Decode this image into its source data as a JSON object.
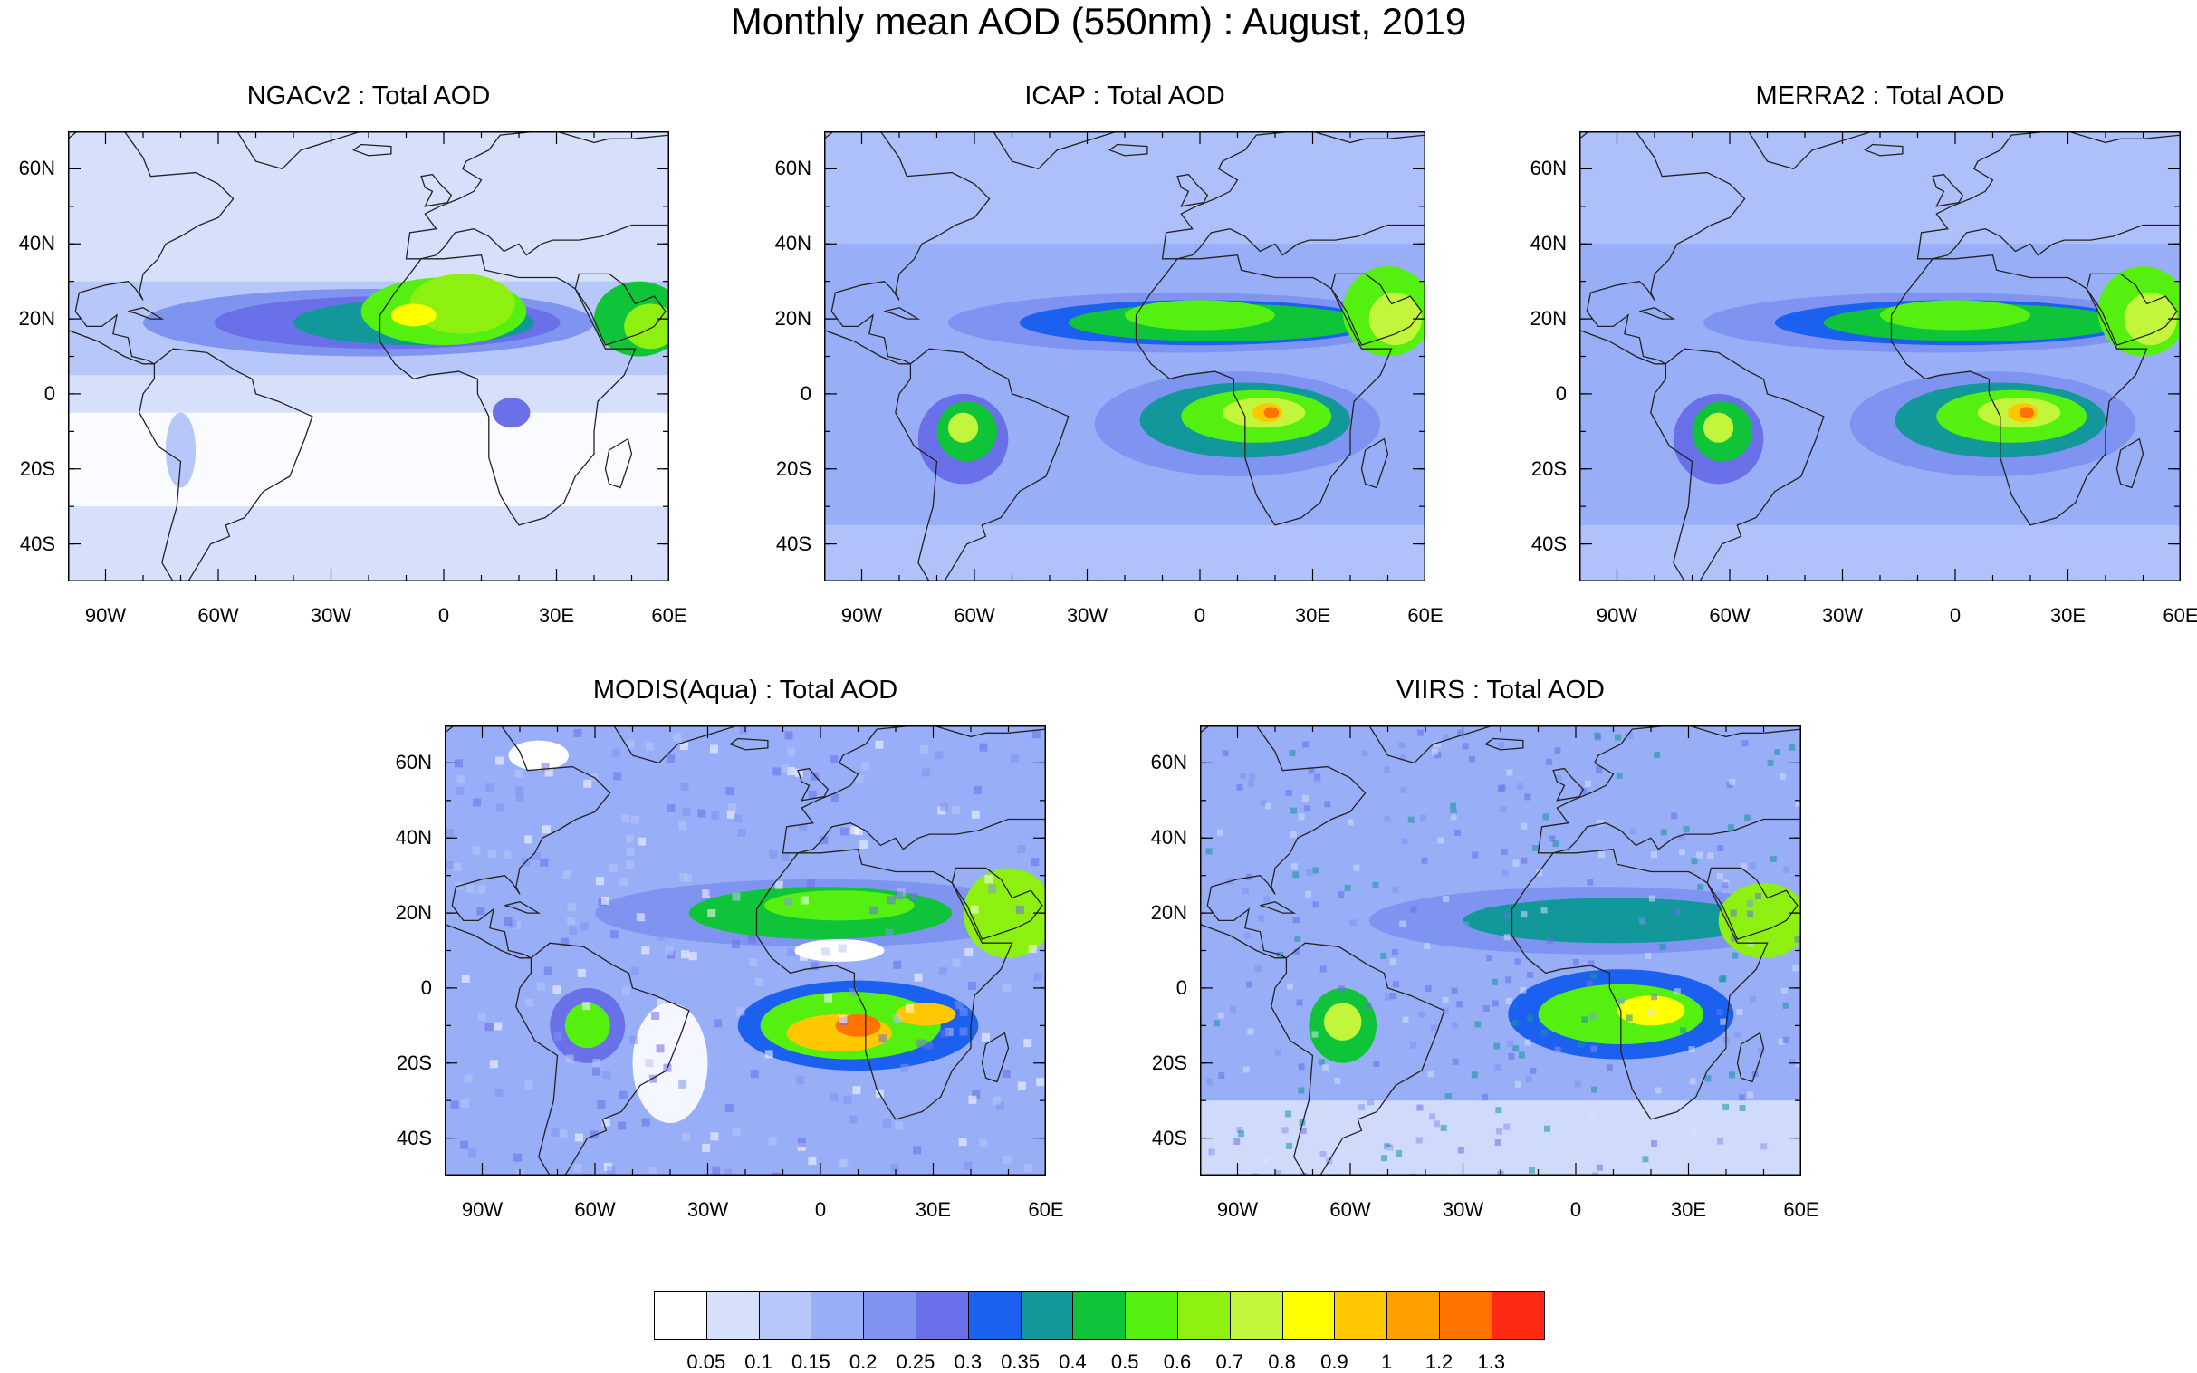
{
  "title": "Monthly mean AOD (550nm) : August, 2019",
  "lat_ticks": [
    "60N",
    "40N",
    "20N",
    "0",
    "20S",
    "40S"
  ],
  "lon_ticks": [
    "90W",
    "60W",
    "30W",
    "0",
    "30E",
    "60E"
  ],
  "panels": [
    {
      "title": "NGACv2 : Total AOD",
      "style": "ngac"
    },
    {
      "title": "ICAP : Total AOD",
      "style": "model"
    },
    {
      "title": "MERRA2 : Total AOD",
      "style": "model"
    },
    {
      "title": "MODIS(Aqua) : Total AOD",
      "style": "modis"
    },
    {
      "title": "VIIRS : Total AOD",
      "style": "viirs"
    }
  ],
  "colorbar": {
    "labels": [
      "0.05",
      "0.1",
      "0.15",
      "0.2",
      "0.25",
      "0.3",
      "0.35",
      "0.4",
      "0.5",
      "0.6",
      "0.7",
      "0.8",
      "0.9",
      "1",
      "1.2",
      "1.3"
    ],
    "colors": [
      "#ffffff",
      "#d6e0fb",
      "#b8c7fa",
      "#98aef7",
      "#7f93f0",
      "#6a70e8",
      "#1c60f0",
      "#12979a",
      "#10c43a",
      "#56f010",
      "#8ef010",
      "#c2f63c",
      "#ffff00",
      "#ffc800",
      "#ffa000",
      "#ff7400",
      "#ff2a14"
    ]
  }
}
